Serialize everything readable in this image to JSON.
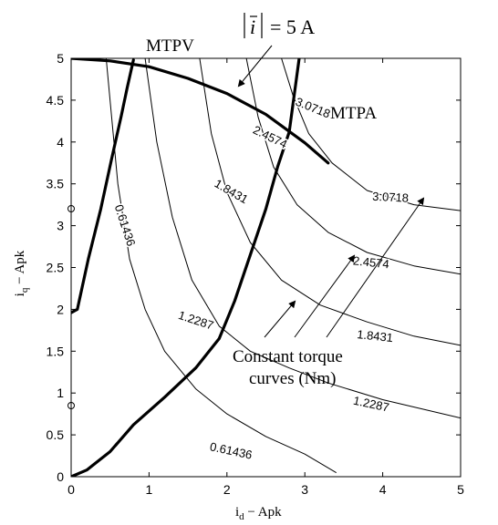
{
  "chart_data": {
    "type": "line",
    "xlabel": "i_d − Apk",
    "xlabel_main": "i",
    "xlabel_sub": "d",
    "xlabel_rest": " − Apk",
    "ylabel_main": "i",
    "ylabel_sub": "q",
    "ylabel_rest": " − Apk",
    "xlim": [
      0,
      5
    ],
    "ylim": [
      0,
      5
    ],
    "xticks": [
      "0",
      "1",
      "2",
      "3",
      "4",
      "5"
    ],
    "yticks": [
      "0",
      "0.5",
      "1",
      "1.5",
      "2",
      "2.5",
      "3",
      "3.5",
      "4",
      "4.5",
      "5"
    ],
    "grid": false,
    "series": [
      {
        "name": "MTPV",
        "style": "thick",
        "points": [
          [
            0,
            1.96
          ],
          [
            0.08,
            2.0
          ],
          [
            0.22,
            2.6
          ],
          [
            0.38,
            3.2
          ],
          [
            0.52,
            3.8
          ],
          [
            0.64,
            4.3
          ],
          [
            0.72,
            4.65
          ],
          [
            0.8,
            4.98
          ]
        ]
      },
      {
        "name": "MTPA",
        "style": "thick",
        "points": [
          [
            0,
            0
          ],
          [
            0.2,
            0.08
          ],
          [
            0.5,
            0.3
          ],
          [
            0.8,
            0.62
          ],
          [
            1.2,
            0.95
          ],
          [
            1.6,
            1.3
          ],
          [
            1.9,
            1.65
          ],
          [
            2.1,
            2.1
          ],
          [
            2.3,
            2.65
          ],
          [
            2.5,
            3.2
          ],
          [
            2.65,
            3.7
          ],
          [
            2.8,
            4.12
          ],
          [
            3.0,
            5.5
          ]
        ]
      },
      {
        "name": "|ī| = 5 A",
        "style": "thick",
        "points": [
          [
            0,
            5.0
          ],
          [
            0.5,
            4.97
          ],
          [
            1.0,
            4.9
          ],
          [
            1.5,
            4.76
          ],
          [
            2.0,
            4.58
          ],
          [
            2.5,
            4.33
          ],
          [
            3.0,
            3.99
          ],
          [
            3.3,
            3.75
          ]
        ]
      },
      {
        "name": "0.61436",
        "style": "thin",
        "points": [
          [
            0.45,
            5.0
          ],
          [
            0.6,
            3.5
          ],
          [
            0.75,
            2.6
          ],
          [
            0.95,
            2.0
          ],
          [
            1.2,
            1.5
          ],
          [
            1.6,
            1.05
          ],
          [
            2.0,
            0.75
          ],
          [
            2.5,
            0.48
          ],
          [
            3.0,
            0.27
          ],
          [
            3.4,
            0.05
          ]
        ]
      },
      {
        "name": "1.2287",
        "style": "thin",
        "points": [
          [
            0.95,
            5.0
          ],
          [
            1.1,
            4.0
          ],
          [
            1.3,
            3.1
          ],
          [
            1.55,
            2.35
          ],
          [
            1.9,
            1.8
          ],
          [
            2.3,
            1.5
          ],
          [
            2.8,
            1.3
          ],
          [
            3.3,
            1.12
          ],
          [
            4.0,
            0.92
          ],
          [
            5.0,
            0.7
          ]
        ]
      },
      {
        "name": "1.8431",
        "style": "thin",
        "points": [
          [
            1.65,
            5.0
          ],
          [
            1.8,
            4.1
          ],
          [
            2.0,
            3.4
          ],
          [
            2.3,
            2.8
          ],
          [
            2.7,
            2.35
          ],
          [
            3.2,
            2.05
          ],
          [
            3.8,
            1.85
          ],
          [
            4.4,
            1.68
          ],
          [
            5.0,
            1.57
          ]
        ]
      },
      {
        "name": "2.4574",
        "style": "thin",
        "points": [
          [
            2.25,
            5.0
          ],
          [
            2.4,
            4.3
          ],
          [
            2.6,
            3.7
          ],
          [
            2.9,
            3.25
          ],
          [
            3.3,
            2.92
          ],
          [
            3.8,
            2.68
          ],
          [
            4.4,
            2.52
          ],
          [
            5.0,
            2.42
          ]
        ]
      },
      {
        "name": "3.0718",
        "style": "thin",
        "points": [
          [
            2.7,
            5.0
          ],
          [
            2.85,
            4.55
          ],
          [
            3.05,
            4.1
          ],
          [
            3.35,
            3.75
          ],
          [
            3.8,
            3.42
          ],
          [
            4.4,
            3.25
          ],
          [
            5.0,
            3.18
          ]
        ]
      }
    ],
    "contour_labels": [
      {
        "text": "0.61436",
        "x": 0.68,
        "y": 3.0,
        "angle": 72
      },
      {
        "text": "1.2287",
        "x": 1.6,
        "y": 1.86,
        "angle": 18
      },
      {
        "text": "1.8431",
        "x": 2.05,
        "y": 3.4,
        "angle": 30
      },
      {
        "text": "2.4574",
        "x": 2.55,
        "y": 4.05,
        "angle": 26
      },
      {
        "text": "3.0718",
        "x": 3.1,
        "y": 4.4,
        "angle": 22
      },
      {
        "text": "0.61436",
        "x": 2.05,
        "y": 0.3,
        "angle": 12
      },
      {
        "text": "1.2287",
        "x": 3.85,
        "y": 0.86,
        "angle": 12
      },
      {
        "text": "1.8431",
        "x": 3.9,
        "y": 1.67,
        "angle": 6
      },
      {
        "text": "2.4574",
        "x": 3.85,
        "y": 2.55,
        "angle": 6
      },
      {
        "text": "3.0718",
        "x": 4.1,
        "y": 3.33,
        "angle": 3
      }
    ],
    "annotations": {
      "mtpv_label": "MTPV",
      "mtpa_label": "MTPA",
      "current_label": "|ī| = 5 A",
      "constant_torque_line1": "Constant torque",
      "constant_torque_line2": "curves (Nm)"
    }
  }
}
